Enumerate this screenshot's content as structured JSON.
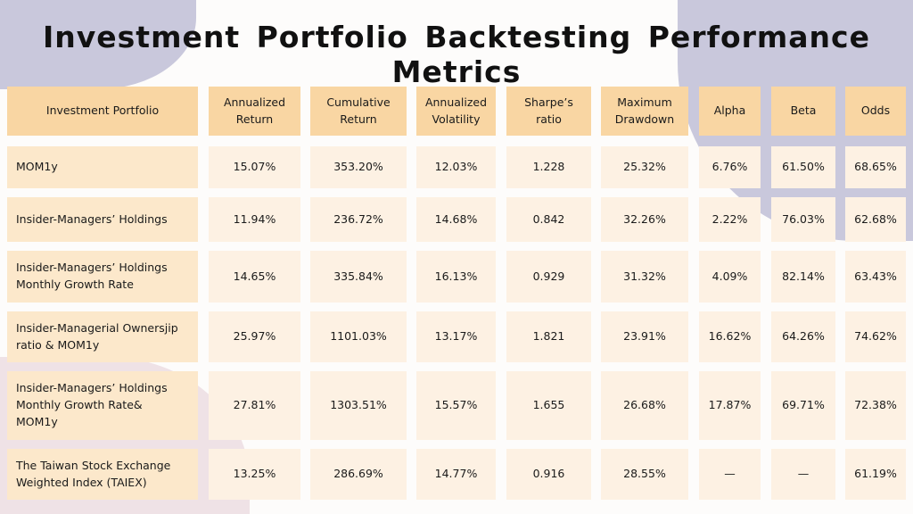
{
  "title": "Investment Portfolio Backtesting Performance Metrics",
  "colors": {
    "header": "#f9d6a3",
    "name_cell": "#fce8cb",
    "value_cell": "#fdf1e3",
    "background_blob": "#c9c8dc"
  },
  "table": {
    "headers": [
      "Investment Portfolio",
      "Annualized\nReturn",
      "Cumulative\nReturn",
      "Annualized\nVolatility",
      "Sharpe’s\nratio",
      "Maximum\nDrawdown",
      "Alpha",
      "Beta",
      "Odds"
    ],
    "rows": [
      [
        "MOM1y",
        "15.07%",
        "353.20%",
        "12.03%",
        "1.228",
        "25.32%",
        "6.76%",
        "61.50%",
        "68.65%"
      ],
      [
        "Insider-Managers’ Holdings",
        "11.94%",
        "236.72%",
        "14.68%",
        "0.842",
        "32.26%",
        "2.22%",
        "76.03%",
        "62.68%"
      ],
      [
        "Insider-Managers’ Holdings\nMonthly Growth Rate",
        "14.65%",
        "335.84%",
        "16.13%",
        "0.929",
        "31.32%",
        "4.09%",
        "82.14%",
        "63.43%"
      ],
      [
        "Insider-Managerial Ownersjip\nratio & MOM1y",
        "25.97%",
        "1101.03%",
        "13.17%",
        "1.821",
        "23.91%",
        "16.62%",
        "64.26%",
        "74.62%"
      ],
      [
        "Insider-Managers’ Holdings\nMonthly Growth Rate&\nMOM1y",
        "27.81%",
        "1303.51%",
        "15.57%",
        "1.655",
        "26.68%",
        "17.87%",
        "69.71%",
        "72.38%"
      ],
      [
        "The Taiwan Stock Exchange\nWeighted Index (TAIEX)",
        "13.25%",
        "286.69%",
        "14.77%",
        "0.916",
        "28.55%",
        "—",
        "—",
        "61.19%"
      ]
    ]
  }
}
